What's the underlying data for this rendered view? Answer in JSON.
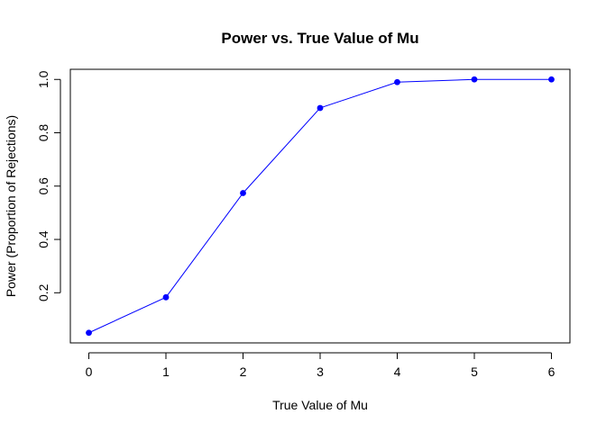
{
  "chart_data": {
    "type": "line",
    "title": "Power vs. True Value of Mu",
    "xlabel": "True Value of Mu",
    "ylabel": "Power (Proportion of Rejections)",
    "x": [
      0,
      1,
      2,
      3,
      4,
      5,
      6
    ],
    "series": [
      {
        "values": [
          0.05,
          0.183,
          0.574,
          0.893,
          0.99,
          1.0,
          1.0
        ],
        "color": "#0000ff",
        "marker": "filled-circle"
      }
    ],
    "xlim": [
      -0.24,
      6.24
    ],
    "ylim": [
      0.012,
      1.038
    ],
    "xticks": [
      0,
      1,
      2,
      3,
      4,
      5,
      6
    ],
    "xtick_labels": [
      "0",
      "1",
      "2",
      "3",
      "4",
      "5",
      "6"
    ],
    "yticks": [
      0.2,
      0.4,
      0.6,
      0.8,
      1.0
    ],
    "ytick_labels": [
      "0.2",
      "0.4",
      "0.6",
      "0.8",
      "1.0"
    ],
    "grid": false,
    "legend": "none"
  }
}
